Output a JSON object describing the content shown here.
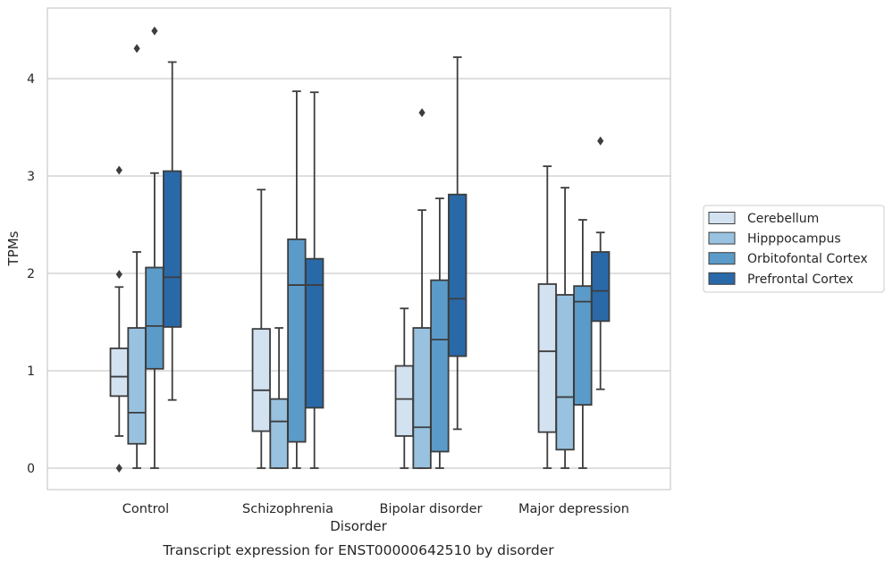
{
  "chart_data": {
    "type": "box",
    "title": "",
    "caption": "Transcript expression for ENST00000642510 by disorder",
    "xlabel": "Disorder",
    "ylabel": "TPMs",
    "ylim": [
      -0.22,
      4.72
    ],
    "yticks": [
      0,
      1,
      2,
      3,
      4
    ],
    "grid": "horizontal",
    "legend_position": "right",
    "categories": [
      "Control",
      "Schizophrenia",
      "Bipolar disorder",
      "Major depression"
    ],
    "series": [
      {
        "name": "Cerebellum",
        "color": "#d3e2f1",
        "boxes": [
          {
            "whislo": 0.33,
            "q1": 0.74,
            "med": 0.94,
            "q3": 1.23,
            "whishi": 1.86,
            "fliers": [
              3.06,
              1.99,
              0.0
            ]
          },
          {
            "whislo": 0.0,
            "q1": 0.38,
            "med": 0.8,
            "q3": 1.43,
            "whishi": 2.86,
            "fliers": []
          },
          {
            "whislo": 0.0,
            "q1": 0.33,
            "med": 0.71,
            "q3": 1.05,
            "whishi": 1.64,
            "fliers": []
          },
          {
            "whislo": 0.0,
            "q1": 0.37,
            "med": 1.2,
            "q3": 1.89,
            "whishi": 3.1,
            "fliers": []
          }
        ]
      },
      {
        "name": "Hipppocampus",
        "color": "#98c2df",
        "boxes": [
          {
            "whislo": 0.0,
            "q1": 0.25,
            "med": 0.57,
            "q3": 1.44,
            "whishi": 2.22,
            "fliers": [
              4.31
            ]
          },
          {
            "whislo": 0.0,
            "q1": 0.0,
            "med": 0.48,
            "q3": 0.71,
            "whishi": 1.44,
            "fliers": []
          },
          {
            "whislo": 0.0,
            "q1": 0.0,
            "med": 0.42,
            "q3": 1.44,
            "whishi": 2.65,
            "fliers": [
              3.65
            ]
          },
          {
            "whislo": 0.0,
            "q1": 0.19,
            "med": 0.73,
            "q3": 1.78,
            "whishi": 2.88,
            "fliers": []
          }
        ]
      },
      {
        "name": "Orbitofontal Cortex",
        "color": "#5b9bc9",
        "boxes": [
          {
            "whislo": 0.0,
            "q1": 1.02,
            "med": 1.46,
            "q3": 2.06,
            "whishi": 3.03,
            "fliers": [
              4.49
            ]
          },
          {
            "whislo": 0.0,
            "q1": 0.27,
            "med": 1.88,
            "q3": 2.35,
            "whishi": 3.87,
            "fliers": []
          },
          {
            "whislo": 0.0,
            "q1": 0.17,
            "med": 1.32,
            "q3": 1.93,
            "whishi": 2.77,
            "fliers": []
          },
          {
            "whislo": 0.0,
            "q1": 0.65,
            "med": 1.71,
            "q3": 1.87,
            "whishi": 2.55,
            "fliers": []
          }
        ]
      },
      {
        "name": "Prefrontal Cortex",
        "color": "#2a69a8",
        "boxes": [
          {
            "whislo": 0.7,
            "q1": 1.45,
            "med": 1.96,
            "q3": 3.05,
            "whishi": 4.17,
            "fliers": []
          },
          {
            "whislo": 0.0,
            "q1": 0.62,
            "med": 1.88,
            "q3": 2.15,
            "whishi": 3.86,
            "fliers": []
          },
          {
            "whislo": 0.4,
            "q1": 1.15,
            "med": 1.74,
            "q3": 2.81,
            "whishi": 4.22,
            "fliers": []
          },
          {
            "whislo": 0.81,
            "q1": 1.51,
            "med": 1.82,
            "q3": 2.22,
            "whishi": 2.42,
            "fliers": [
              3.36
            ]
          }
        ]
      }
    ]
  }
}
